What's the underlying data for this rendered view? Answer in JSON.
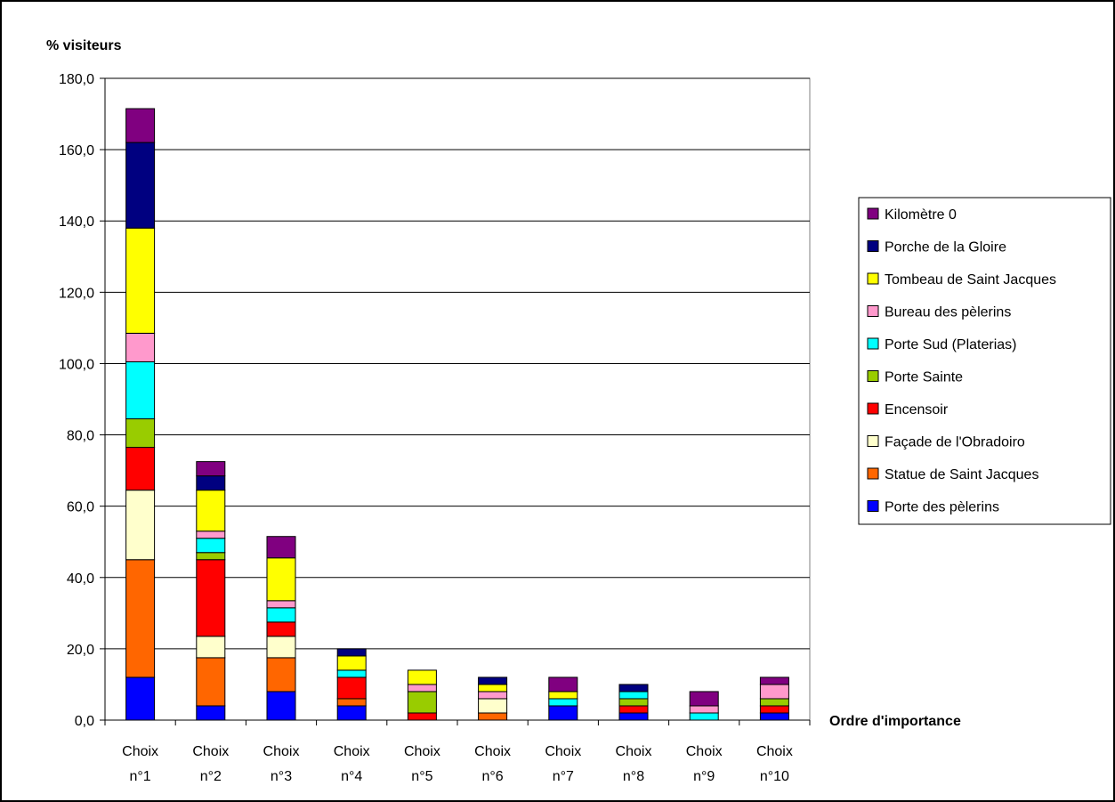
{
  "chart_data": {
    "type": "bar",
    "stacked": true,
    "ylabel": "% visiteurs",
    "xlabel": "Ordre d'importance",
    "ylim": [
      0,
      180
    ],
    "y_ticks": [
      "0,0",
      "20,0",
      "40,0",
      "60,0",
      "80,0",
      "100,0",
      "120,0",
      "140,0",
      "160,0",
      "180,0"
    ],
    "categories": [
      [
        "Choix",
        "n°1"
      ],
      [
        "Choix",
        "n°2"
      ],
      [
        "Choix",
        "n°3"
      ],
      [
        "Choix",
        "n°4"
      ],
      [
        "Choix",
        "n°5"
      ],
      [
        "Choix",
        "n°6"
      ],
      [
        "Choix",
        "n°7"
      ],
      [
        "Choix",
        "n°8"
      ],
      [
        "Choix",
        "n°9"
      ],
      [
        "Choix",
        "n°10"
      ]
    ],
    "grid": true,
    "legend_position": "right",
    "series": [
      {
        "name": "Porte des pèlerins",
        "color": "#0000FF",
        "values": [
          12,
          4,
          8,
          4,
          0,
          0,
          4,
          2,
          0,
          2
        ]
      },
      {
        "name": "Statue de Saint Jacques",
        "color": "#FF6600",
        "values": [
          33,
          13.5,
          9.5,
          2,
          0,
          2,
          0,
          0,
          0,
          0
        ]
      },
      {
        "name": "Façade de l'Obradoiro",
        "color": "#FFFFCC",
        "values": [
          19.5,
          6,
          6,
          0,
          0,
          4,
          0,
          0,
          0,
          0
        ]
      },
      {
        "name": "Encensoir",
        "color": "#FF0000",
        "values": [
          12,
          21.5,
          4,
          6,
          2,
          0,
          0,
          2,
          0,
          2
        ]
      },
      {
        "name": "Porte Sainte",
        "color": "#99CC00",
        "values": [
          8,
          2,
          0,
          0,
          6,
          0,
          0,
          2,
          0,
          2
        ]
      },
      {
        "name": "Porte Sud (Platerias)",
        "color": "#00FFFF",
        "values": [
          16,
          4,
          4,
          2,
          0,
          0,
          2,
          2,
          2,
          0
        ]
      },
      {
        "name": "Bureau des pèlerins",
        "color": "#FF99CC",
        "values": [
          8,
          2,
          2,
          0,
          2,
          2,
          0,
          0,
          2,
          4
        ]
      },
      {
        "name": "Tombeau de Saint Jacques",
        "color": "#FFFF00",
        "values": [
          29.5,
          11.5,
          12,
          4,
          4,
          2,
          2,
          0,
          0,
          0
        ]
      },
      {
        "name": "Porche de la Gloire",
        "color": "#000080",
        "values": [
          24,
          4,
          0,
          2,
          0,
          2,
          0,
          2,
          0,
          0
        ]
      },
      {
        "name": "Kilomètre 0",
        "color": "#800080",
        "values": [
          9.5,
          4,
          6,
          0,
          0,
          0,
          4,
          0,
          4,
          2
        ]
      }
    ]
  }
}
